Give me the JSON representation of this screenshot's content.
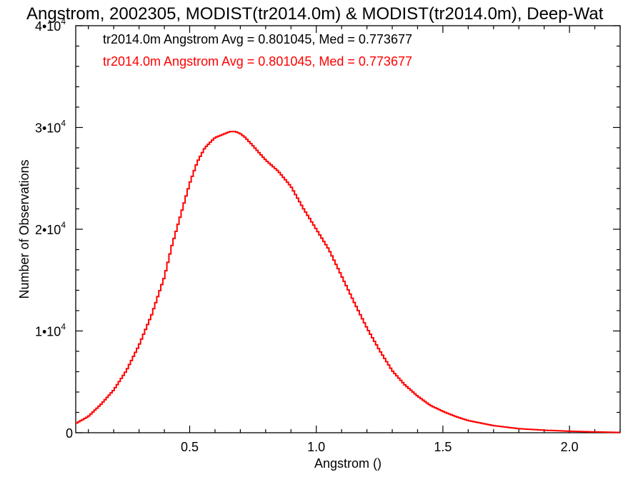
{
  "chart_data": {
    "type": "line",
    "title": "Angstrom, 2002305, MODIST(tr2014.0m) & MODIST(tr2014.0m), Deep-Wat",
    "xlabel": "Angstrom ()",
    "ylabel": "Number of Observations",
    "xlim": [
      0.05,
      2.2
    ],
    "ylim": [
      0,
      40000
    ],
    "x_ticks": [
      0.5,
      1.0,
      1.5,
      2.0
    ],
    "x_tick_labels": [
      "0.5",
      "1.0",
      "1.5",
      "2.0"
    ],
    "y_ticks": [
      {
        "value": 0,
        "mantissa": "0",
        "exponent": ""
      },
      {
        "value": 10000,
        "mantissa": "1•10",
        "exponent": "4"
      },
      {
        "value": 20000,
        "mantissa": "2•10",
        "exponent": "4"
      },
      {
        "value": 30000,
        "mantissa": "3•10",
        "exponent": "4"
      },
      {
        "value": 40000,
        "mantissa": "4•10",
        "exponent": "4"
      }
    ],
    "annotations": [
      {
        "text": "tr2014.0m Angstrom Avg = 0.801045, Med = 0.773677",
        "color": "#000000"
      },
      {
        "text": "tr2014.0m Angstrom Avg = 0.801045, Med = 0.773677",
        "color": "#ff0000"
      }
    ],
    "series": [
      {
        "color": "#ff0000",
        "x": [
          0.05,
          0.1,
          0.15,
          0.2,
          0.25,
          0.3,
          0.35,
          0.4,
          0.43,
          0.46,
          0.5,
          0.53,
          0.56,
          0.6,
          0.63,
          0.66,
          0.68,
          0.7,
          0.72,
          0.75,
          0.8,
          0.85,
          0.9,
          0.95,
          1.0,
          1.05,
          1.1,
          1.15,
          1.2,
          1.25,
          1.3,
          1.35,
          1.4,
          1.45,
          1.5,
          1.55,
          1.6,
          1.7,
          1.8,
          1.9,
          2.0,
          2.1,
          2.2
        ],
        "y": [
          900,
          1600,
          2800,
          4200,
          6100,
          8600,
          11600,
          15300,
          18400,
          21000,
          24500,
          26600,
          28000,
          29000,
          29300,
          29600,
          29600,
          29400,
          29000,
          28200,
          26800,
          25700,
          24200,
          22000,
          20000,
          18000,
          15400,
          12800,
          10300,
          8100,
          6100,
          4700,
          3600,
          2700,
          2100,
          1600,
          1200,
          700,
          400,
          250,
          150,
          80,
          30
        ]
      }
    ]
  }
}
